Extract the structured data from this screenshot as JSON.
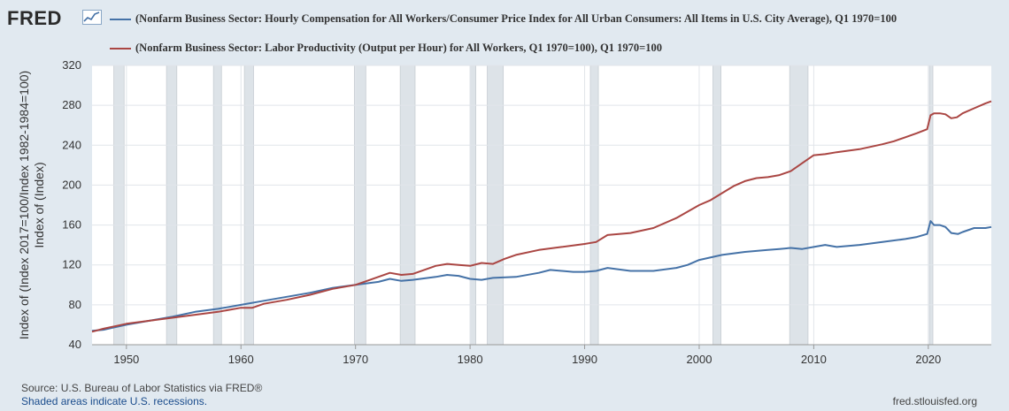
{
  "brand": {
    "name": "FRED",
    "icon": "chart-line-icon"
  },
  "colors": {
    "series1": "#4572a7",
    "series2": "#aa4643",
    "plot_bg": "#ffffff",
    "page_bg": "#e1e9f0",
    "recession": "#dde3e8"
  },
  "footer": {
    "source": "Source: U.S. Bureau of Labor Statistics via FRED®",
    "recessions": "Shaded areas indicate U.S. recessions.",
    "url": "fred.stlouisfed.org"
  },
  "chart_data": {
    "type": "line",
    "title": "",
    "xlabel": "",
    "ylabel": "Index of (Index 2017=100/Index 1982-1984=100), Index of (Index)",
    "ylabel_lines": [
      "Index of (Index 2017=100/Index 1982-1984=100)",
      "Index of (Index)"
    ],
    "xlim": [
      1947,
      2025.5
    ],
    "ylim": [
      40,
      320
    ],
    "x_ticks": [
      "1950",
      "1960",
      "1970",
      "1980",
      "1990",
      "2000",
      "2010",
      "2020"
    ],
    "y_ticks": [
      "40",
      "80",
      "120",
      "160",
      "200",
      "240",
      "280",
      "320"
    ],
    "grid": true,
    "recessions": [
      [
        1948.9,
        1949.8
      ],
      [
        1953.5,
        1954.4
      ],
      [
        1957.6,
        1958.3
      ],
      [
        1960.3,
        1961.1
      ],
      [
        1969.9,
        1970.9
      ],
      [
        1973.9,
        1975.2
      ],
      [
        1980.0,
        1980.5
      ],
      [
        1981.5,
        1982.9
      ],
      [
        1990.5,
        1991.2
      ],
      [
        2001.2,
        2001.9
      ],
      [
        2007.9,
        2009.5
      ],
      [
        2020.1,
        2020.4
      ]
    ],
    "series": [
      {
        "name": "(Nonfarm Business Sector: Hourly Compensation for All Workers/Consumer Price Index for All Urban Consumers: All Items in U.S. City Average), Q1 1970=100",
        "color": "#4572a7",
        "x": [
          1947,
          1948,
          1950,
          1952,
          1954,
          1956,
          1958,
          1960,
          1962,
          1964,
          1966,
          1968,
          1970,
          1972,
          1973,
          1974,
          1975,
          1977,
          1978,
          1979,
          1980,
          1981,
          1982,
          1984,
          1986,
          1987,
          1988,
          1989,
          1990,
          1991,
          1992,
          1994,
          1996,
          1998,
          1999,
          2000,
          2002,
          2004,
          2005,
          2006,
          2007,
          2008,
          2009,
          2010,
          2011,
          2012,
          2014,
          2016,
          2018,
          2019,
          2019.9,
          2020.2,
          2020.5,
          2021,
          2021.5,
          2022,
          2022.6,
          2023,
          2024,
          2025,
          2025.5
        ],
        "values": [
          54,
          55,
          60,
          64,
          68,
          73,
          76,
          80,
          84,
          88,
          92,
          97,
          100,
          103,
          106,
          104,
          105,
          108,
          110,
          109,
          106,
          105,
          107,
          108,
          112,
          115,
          114,
          113,
          113,
          114,
          117,
          114,
          114,
          117,
          120,
          125,
          130,
          133,
          134,
          135,
          136,
          137,
          136,
          138,
          140,
          138,
          140,
          143,
          146,
          148,
          151,
          164,
          160,
          160,
          158,
          152,
          151,
          153,
          157,
          157,
          158
        ]
      },
      {
        "name": "(Nonfarm Business Sector: Labor Productivity (Output per Hour) for All Workers, Q1 1970=100), Q1 1970=100",
        "color": "#aa4643",
        "x": [
          1947,
          1948,
          1950,
          1952,
          1954,
          1956,
          1958,
          1960,
          1961,
          1962,
          1964,
          1966,
          1968,
          1970,
          1971,
          1973,
          1974,
          1975,
          1977,
          1978,
          1979,
          1980,
          1981,
          1982,
          1983,
          1984,
          1986,
          1988,
          1990,
          1991,
          1992,
          1994,
          1996,
          1998,
          2000,
          2001,
          2002,
          2003,
          2004,
          2005,
          2006,
          2007,
          2008,
          2009,
          2010,
          2011,
          2012,
          2014,
          2016,
          2017,
          2018,
          2019,
          2019.9,
          2020.2,
          2020.5,
          2021,
          2021.5,
          2022,
          2022.5,
          2023,
          2024,
          2025,
          2025.5
        ],
        "values": [
          53,
          56,
          61,
          64,
          67,
          70,
          73,
          77,
          77,
          81,
          85,
          90,
          96,
          100,
          104,
          112,
          110,
          111,
          119,
          121,
          120,
          119,
          122,
          121,
          126,
          130,
          135,
          138,
          141,
          143,
          150,
          152,
          157,
          167,
          180,
          185,
          192,
          199,
          204,
          207,
          208,
          210,
          214,
          222,
          230,
          231,
          233,
          236,
          241,
          244,
          248,
          252,
          256,
          270,
          272,
          272,
          271,
          267,
          268,
          272,
          277,
          282,
          284
        ]
      }
    ]
  }
}
